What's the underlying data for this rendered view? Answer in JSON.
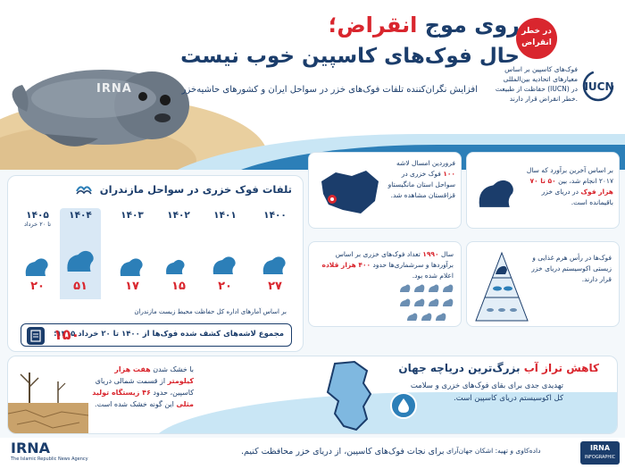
{
  "header": {
    "title_line1_part1": "روی موج ",
    "title_line1_red": "انقراض؛",
    "title_line2": "حال فوک‌های کاسپین خوب نیست",
    "subtitle": "افزایش نگران‌کننده تلفات فوک‌های خزر در سواحل ایران و کشورهای حاشیه‌خزر",
    "danger_badge": "در خطر انقراض",
    "iucn_text": "فوک‌های کاسپین بر اساس معیارهای اتحادیه بین‌المللی حفاظت از طبیعت (IUCN) در خطر انقراض قرار دارند.",
    "iucn_logo": "IUCN",
    "watermark": "IRNA"
  },
  "mortality": {
    "title": "تلفات فوک خزری در سواحل مازندران",
    "years": [
      {
        "year": "۱۴۰۰",
        "count": "۲۷",
        "note": ""
      },
      {
        "year": "۱۴۰۱",
        "count": "۲۰",
        "note": ""
      },
      {
        "year": "۱۴۰۲",
        "count": "۱۵",
        "note": ""
      },
      {
        "year": "۱۴۰۳",
        "count": "۱۷",
        "note": ""
      },
      {
        "year": "۱۴۰۴",
        "count": "۵۱",
        "note": ""
      },
      {
        "year": "۱۴۰۵",
        "count": "۲۰",
        "note": "تا ۲۰ خرداد"
      }
    ],
    "source": "بر اساس آمارهای اداره کل حفاظت محیط زیست مازندران",
    "total_label": "مجموع لاشه‌های کشف شده فوک‌ها از ۱۴۰۰ تا ۲۰ خرداد ۱۴۰۵:",
    "total_value": "۱۵۰"
  },
  "cards": {
    "farvardin": {
      "part1": "فروردین امسال لاشه ",
      "red": "۱۰۰",
      "part2": " فوک خزری در سواحل استان مانگیستاو قزاقستان مشاهده شد."
    },
    "estimate": {
      "part1": "بر اساس آخرین برآورد که سال ۲۰۱۷ انجام شد، بین ",
      "red": "۵۰ تا ۷۰ هزار فوک",
      "part2": " در دریای خزر باقیمانده است."
    },
    "y1990": {
      "part0": "سال ",
      "red1": "۱۹۹۰",
      "part1": " تعداد فوک‌های خزری بر اساس برآوردها و سرشماری‌ها حدود ",
      "red2": "۴۰۰ هزار قلاده",
      "part2": " اعلام شده بود."
    },
    "foodchain": {
      "text": "فوک‌ها در رأس هرم غذایی و زیستی اکوسیستم دریای خزر قرار دارند."
    }
  },
  "bottom": {
    "title_red": "کاهش تراز آب",
    "title_rest": " بزرگ‌ترین دریاچه جهان",
    "text": "تهدیدی جدی برای بقای فوک‌های خزری و سلامت کل اکوسیستم دریای کاسپین است.",
    "left_part1": "با خشک شدن ",
    "left_red1": "هفت هزار کیلومتر",
    "left_part2": " از قسمت شمالی دریای کاسپین، حدود ",
    "left_red2": "۴۶ زیستگاه تولید مثلی",
    "left_part3": " این گونه خشک شده است."
  },
  "footer": {
    "irna": "IRNA",
    "irna_sub": "The Islamic Republic News Agency",
    "message": "برای نجات فوک‌های کاسپین، از دریای خزر محافظت کنیم.",
    "credit": "داده‌کاوی و تهیه: اشکان جهان‌آرای",
    "irna_infographic": "IRNA",
    "infographic_label": "INFOGRAPHIC"
  }
}
